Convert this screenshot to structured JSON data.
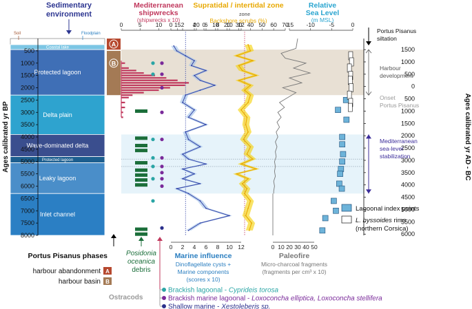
{
  "chart_data": {
    "type": "line",
    "left_axis": {
      "label": "Ages calibrated yr BP",
      "ticks": [
        500,
        1000,
        1500,
        2000,
        2500,
        3000,
        3500,
        4000,
        4500,
        5000,
        5500,
        6000,
        6500,
        7000,
        7500,
        8000
      ],
      "ylim": [
        0,
        8000
      ]
    },
    "right_axis": {
      "label": "Ages calibrated yr AD - BC",
      "ticks": [
        {
          "label": "1500",
          "bp": 450
        },
        {
          "label": "1000",
          "bp": 950
        },
        {
          "label": "500",
          "bp": 1450
        },
        {
          "label": "0",
          "bp": 1950
        },
        {
          "label": "500",
          "bp": 2450
        },
        {
          "label": "1000",
          "bp": 2950
        },
        {
          "label": "1500",
          "bp": 3450
        },
        {
          "label": "2000",
          "bp": 3950
        },
        {
          "label": "2500",
          "bp": 4450
        },
        {
          "label": "3000",
          "bp": 4950
        },
        {
          "label": "3500",
          "bp": 5450
        },
        {
          "label": "4000",
          "bp": 5950
        },
        {
          "label": "4500",
          "bp": 6450
        },
        {
          "label": "5000",
          "bp": 6950
        },
        {
          "label": "5500",
          "bp": 7450
        },
        {
          "label": "6000",
          "bp": 7950
        }
      ]
    },
    "environment": {
      "title": "Sedimentary environment",
      "soil_label": "Soil",
      "floodplain_label": "Floodplain",
      "units": [
        {
          "label": "Coastal lake",
          "top": 250,
          "bottom": 450,
          "color": "#7cc6e4"
        },
        {
          "label": "Protected lagoon",
          "top": 450,
          "bottom": 2300,
          "color": "#3f6fb6"
        },
        {
          "label": "Delta plain",
          "top": 2300,
          "bottom": 3900,
          "color": "#2ea3cf"
        },
        {
          "label": "Wave-dominated delta",
          "top": 3900,
          "bottom": 4800,
          "color": "#3a4e8e"
        },
        {
          "label": "Protected lagoon",
          "top": 4800,
          "bottom": 5050,
          "color": "#1c5e8f"
        },
        {
          "label": "Leaky lagoon",
          "top": 5050,
          "bottom": 6300,
          "color": "#4a8ec9"
        },
        {
          "label": "Inlet channel",
          "top": 6300,
          "bottom": 8000,
          "color": "#2b7fc4"
        }
      ]
    },
    "phases": {
      "title": "Portus Pisanus phases",
      "items": [
        {
          "letter": "A",
          "label": "harbour abandonment",
          "top": 0,
          "bottom": 450,
          "color": "#b6482e"
        },
        {
          "letter": "B",
          "label": "harbour basin",
          "top": 500,
          "bottom": 2300,
          "color": "#a47a55"
        }
      ]
    },
    "shipwrecks": {
      "title": "Mediterranean shipwrecks",
      "unit": "(shipwrecks x 10)",
      "xlim": [
        0,
        20
      ],
      "ticks": [
        0,
        5,
        10,
        15,
        20
      ],
      "color": "#c0385d",
      "y": [
        1000,
        1200,
        1300,
        1400,
        1500,
        1600,
        1700,
        1800,
        1900,
        2000,
        2100,
        2200,
        2300,
        2400,
        2600,
        2800,
        3000,
        3200
      ],
      "values": [
        1,
        2,
        4,
        6,
        9,
        12,
        15,
        18,
        17,
        13,
        10,
        6,
        3,
        2,
        1,
        1,
        0.5,
        0.5
      ]
    },
    "backshore": {
      "title": "Supratidal / intertidal zone",
      "unit": "Backshore scrubs (%)",
      "xlim": [
        0,
        70
      ],
      "ticks": [
        0,
        10,
        20,
        30,
        40,
        50,
        60,
        70
      ],
      "color": "#f0bf00",
      "y": [
        250,
        500,
        700,
        900,
        1100,
        1300,
        1500,
        1700,
        1900,
        2100,
        2300,
        2600,
        2900,
        3200,
        3500,
        3800,
        4100,
        4400,
        4700,
        4900,
        5100,
        5300,
        5500,
        5700,
        5900,
        6100,
        6300,
        6600,
        6900,
        7200,
        7500,
        7800
      ],
      "values": [
        38,
        40,
        28,
        42,
        30,
        33,
        45,
        30,
        40,
        35,
        40,
        38,
        32,
        37,
        36,
        38,
        34,
        40,
        37,
        42,
        32,
        45,
        28,
        38,
        33,
        37,
        35,
        40,
        38,
        36,
        41,
        39
      ]
    },
    "marine": {
      "title": "Marine influence",
      "unit": "Dinoflagellate cysts + Marine components (scores x 10)",
      "xlim": [
        0,
        12
      ],
      "ticks": [
        0,
        2,
        4,
        6,
        8,
        10,
        12
      ],
      "color": "#3344a8",
      "y": [
        300,
        500,
        700,
        900,
        1100,
        1300,
        1500,
        1700,
        1900,
        2100,
        2300,
        2600,
        2900,
        3200,
        3500,
        3800,
        4100,
        4400,
        4700,
        4900,
        5100,
        5300,
        5500,
        5700,
        5900,
        6100,
        6300,
        6600,
        6900,
        7200,
        7500,
        7800
      ],
      "values": [
        0.5,
        1,
        2.5,
        4,
        3.5,
        6,
        4,
        5,
        7.5,
        5,
        2.5,
        2,
        4,
        3,
        6,
        2.5,
        3,
        5,
        2,
        3,
        6,
        2,
        4,
        2,
        5,
        1,
        3,
        5,
        6,
        10,
        5,
        3
      ]
    },
    "paleofire": {
      "title": "Paleofire",
      "unit": "Micro-charcoal fragments (fragments per cm³ x 10)",
      "xlim": [
        0,
        50
      ],
      "ticks": [
        0,
        10,
        20,
        30,
        40,
        50
      ],
      "color": "#777777",
      "y": [
        0,
        400,
        600,
        800,
        1000,
        1200,
        1400,
        1600,
        1800,
        2000,
        2200,
        2400,
        2600,
        2800,
        3000,
        3200,
        3400,
        3600,
        3800,
        4000,
        4200,
        4400,
        4600,
        4800,
        5000,
        5200,
        5400,
        5600,
        5800,
        6000,
        6200,
        6300
      ],
      "values": [
        30,
        28,
        10,
        15,
        40,
        25,
        45,
        20,
        35,
        12,
        28,
        18,
        8,
        14,
        6,
        10,
        5,
        8,
        4,
        6,
        3,
        5,
        3,
        4,
        2,
        3,
        2,
        3,
        1,
        2,
        1,
        1
      ]
    },
    "sea_level": {
      "title": "Relative Sea Level",
      "unit": "(m MSL)",
      "xlim": [
        -15,
        0
      ],
      "ticks": [
        -15,
        -10,
        -5,
        0
      ],
      "lagoonal_points": [
        {
          "y": 2900,
          "x": -3.5
        },
        {
          "y": 4000,
          "x": -2.5
        },
        {
          "y": 4300,
          "x": -2.5
        },
        {
          "y": 4700,
          "x": -2.3
        },
        {
          "y": 5000,
          "x": -2.5
        },
        {
          "y": 5300,
          "x": -2.8
        },
        {
          "y": 5500,
          "x": -3.0
        },
        {
          "y": 5900,
          "x": -3.2
        },
        {
          "y": 6100,
          "x": -2.6
        },
        {
          "y": 6600,
          "x": -4.5
        },
        {
          "y": 7000,
          "x": -4.0
        },
        {
          "y": 7300,
          "x": -6.5
        },
        {
          "y": 7800,
          "x": -7.2
        },
        {
          "y": 2500,
          "x": -1.6
        },
        {
          "y": 3300,
          "x": -1.5
        }
      ],
      "rims": [
        {
          "y": 700,
          "x": -0.5
        },
        {
          "y": 950,
          "x": -0.3
        },
        {
          "y": 1200,
          "x": -0.8
        },
        {
          "y": 1500,
          "x": -0.5
        },
        {
          "y": 1700,
          "x": -0.6
        },
        {
          "y": 2000,
          "x": -0.4
        },
        {
          "y": 2300,
          "x": -0.8
        },
        {
          "y": 2600,
          "x": -0.5
        },
        {
          "y": 2800,
          "x": -0.6
        }
      ]
    },
    "posidonia": {
      "label": "Posidonia oceanica debris",
      "color": "#1b6e3a",
      "bars": [
        2950,
        4050,
        4350,
        4550,
        5050,
        5350,
        5550,
        5750,
        5950,
        7750,
        7950
      ]
    },
    "ostracods": {
      "label": "Ostracods",
      "items": [
        {
          "prefix": "Brackish lagoonal - ",
          "species": "Cyprideis torosa",
          "color": "#2aa5a5",
          "text_color": "#2aa5a5"
        },
        {
          "prefix": "Brackish marine lagoonal - ",
          "species": "Loxoconcha elliptica, Loxoconcha  stellifera",
          "color": "#7a2a9a",
          "text_color": "#7a2a9a"
        },
        {
          "prefix": "Shallow marine - ",
          "species": "Xestoleberis sp.",
          "color": "#2a2f8c",
          "text_color": "#2a2f8c"
        }
      ],
      "points": [
        {
          "y": 1000,
          "col": 0,
          "type": 0
        },
        {
          "y": 1000,
          "col": 1,
          "type": 1
        },
        {
          "y": 1450,
          "col": 0,
          "type": 0
        },
        {
          "y": 1450,
          "col": 1,
          "type": 1
        },
        {
          "y": 2000,
          "col": 1,
          "type": 1
        },
        {
          "y": 3000,
          "col": 1,
          "type": 1
        },
        {
          "y": 4100,
          "col": 0,
          "type": 0
        },
        {
          "y": 4100,
          "col": 1,
          "type": 1
        },
        {
          "y": 4850,
          "col": 0,
          "type": 0
        },
        {
          "y": 4850,
          "col": 1,
          "type": 1
        },
        {
          "y": 5200,
          "col": 0,
          "type": 0
        },
        {
          "y": 5200,
          "col": 1,
          "type": 1
        },
        {
          "y": 5450,
          "col": 1,
          "type": 1
        },
        {
          "y": 5700,
          "col": 0,
          "type": 0
        },
        {
          "y": 5700,
          "col": 1,
          "type": 1
        },
        {
          "y": 6000,
          "col": 1,
          "type": 1
        },
        {
          "y": 6600,
          "col": 0,
          "type": 0
        },
        {
          "y": 7700,
          "col": 1,
          "type": 2
        }
      ]
    },
    "annotations": {
      "siltation": "Portus Pisanus siltation",
      "harbour_development": "Harbour development",
      "onset": "Onset Portus Pisanus",
      "stabilization": "Mediterranean sea-level stabilization"
    },
    "legend": {
      "lagoonal": "Lagoonal index points",
      "rims_name": "L. byssoides",
      "rims_suffix": " rims",
      "rims_region": "(northern Corsica)"
    },
    "bands": [
      {
        "top": 450,
        "bottom": 2300,
        "color": "#e8e0d4"
      },
      {
        "top": 3900,
        "bottom": 6300,
        "color": "#e6f3fa"
      }
    ]
  }
}
